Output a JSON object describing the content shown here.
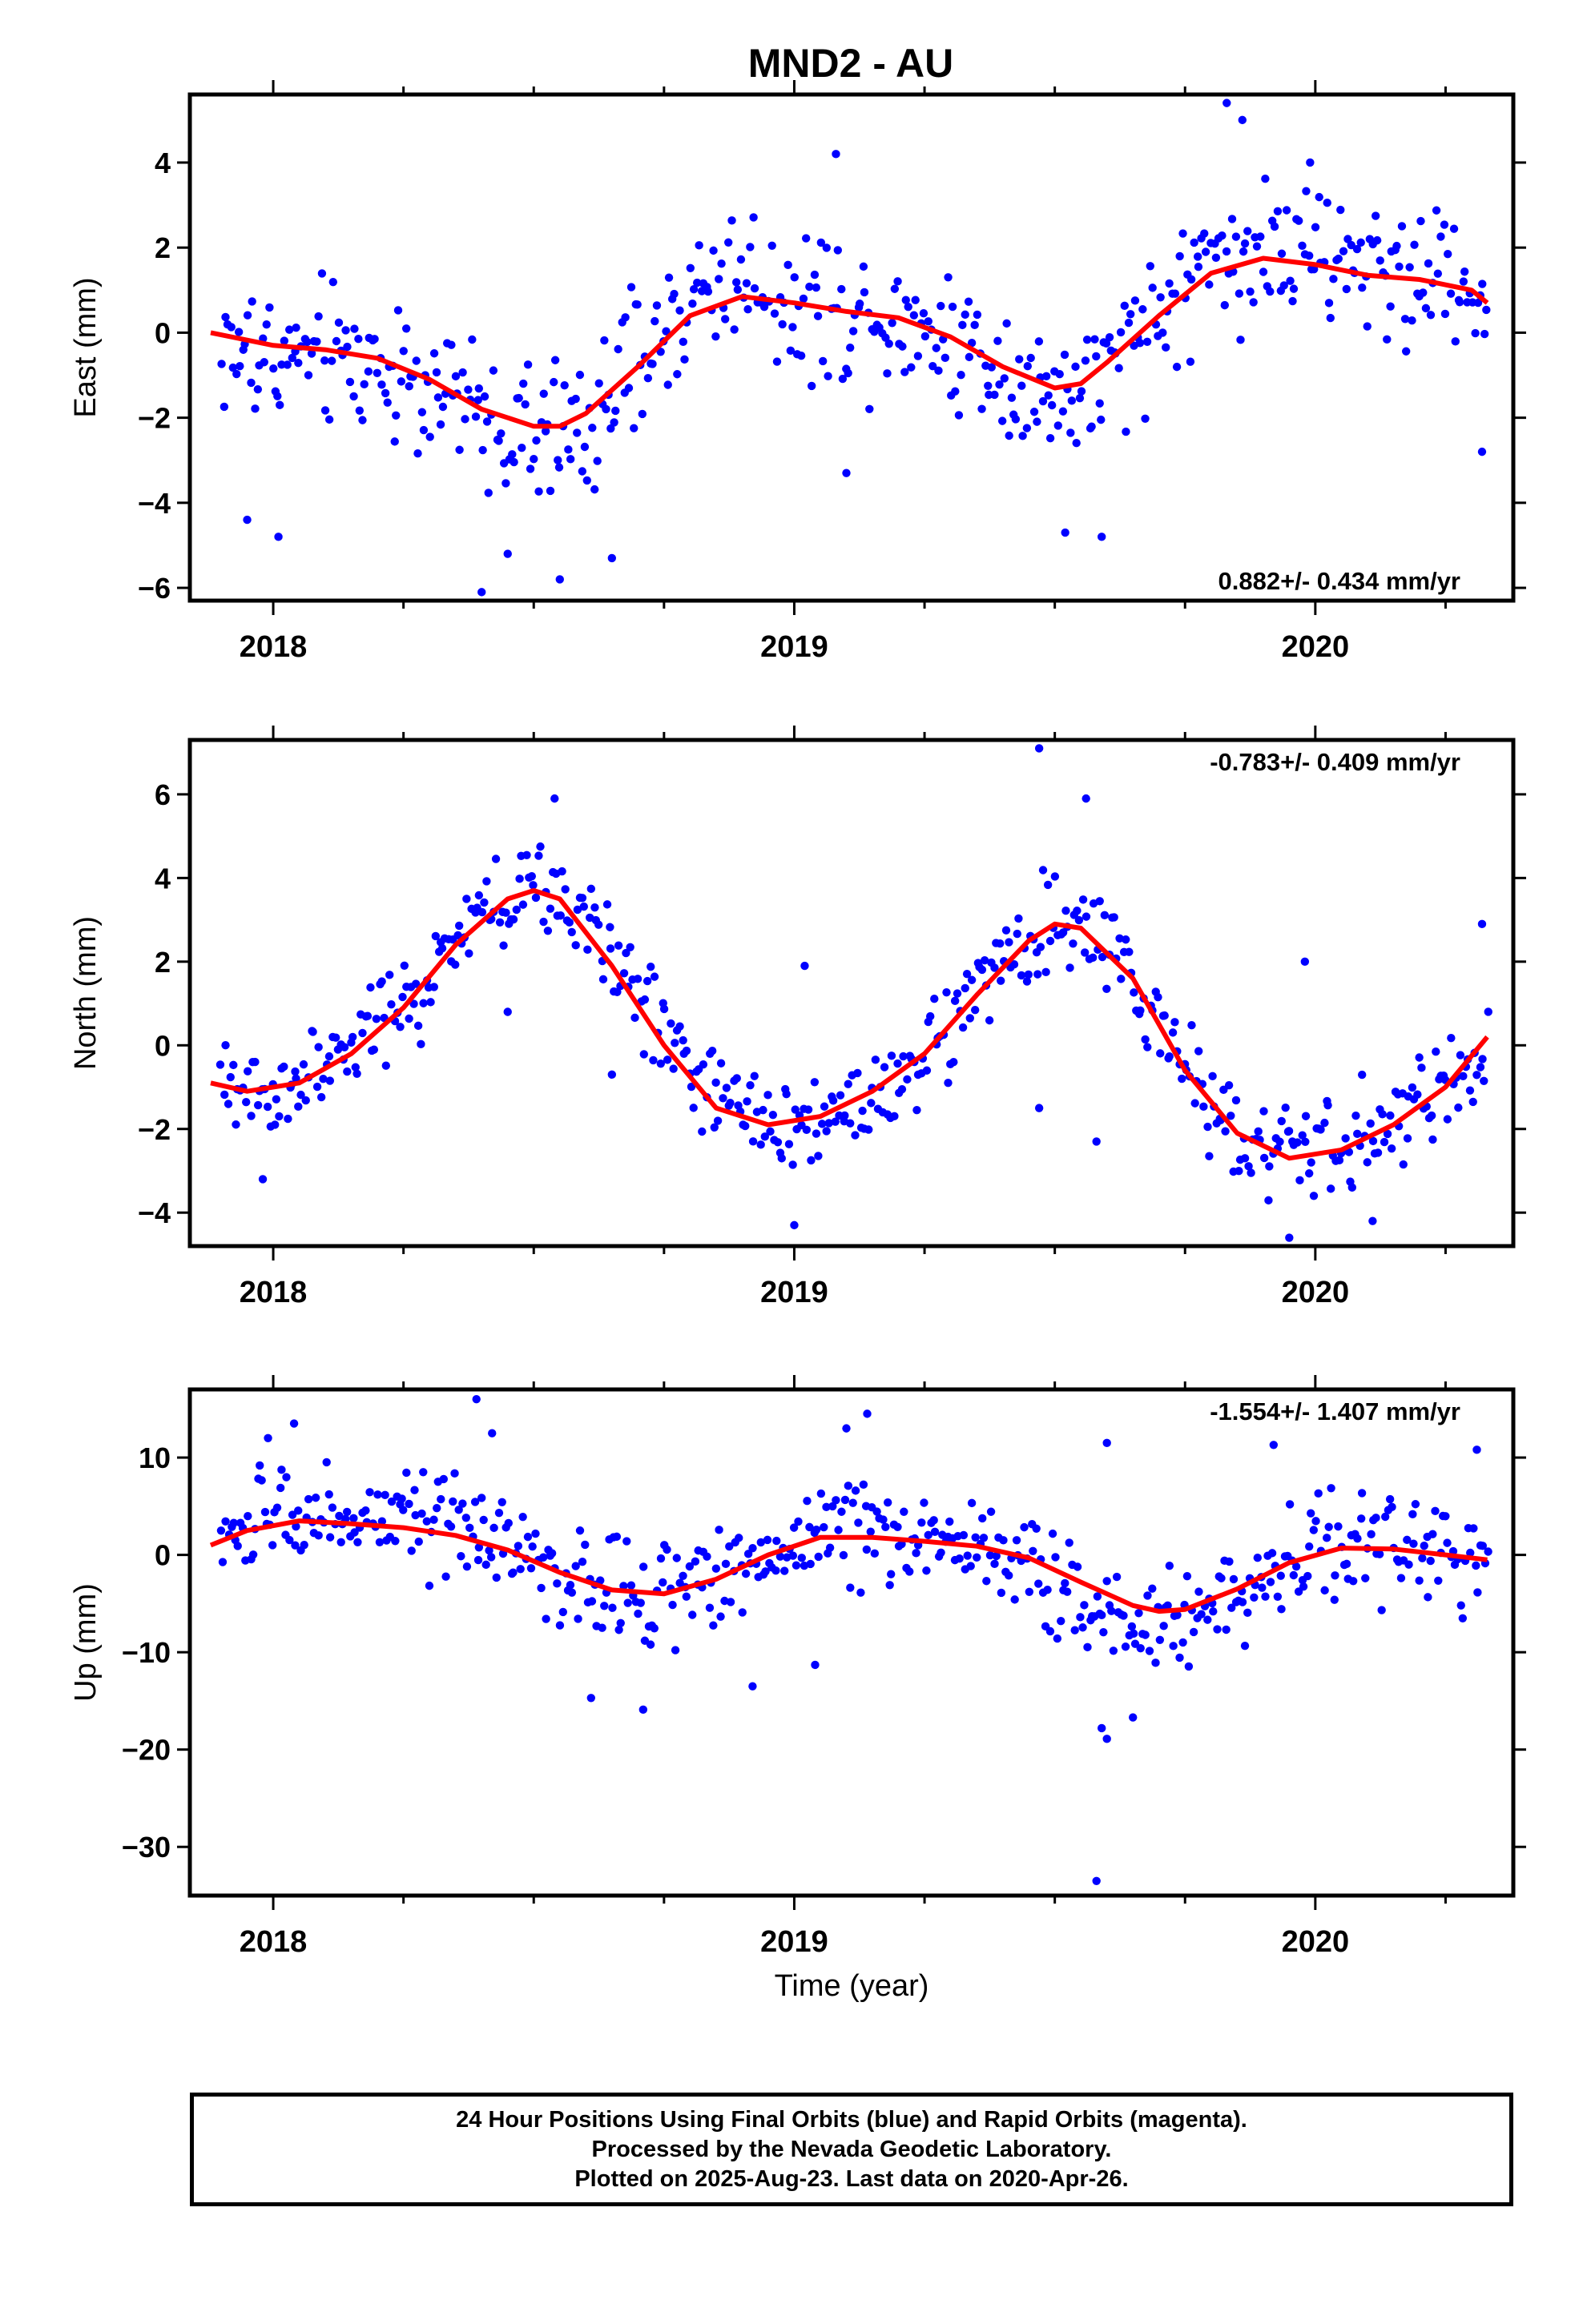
{
  "title": "MND2 - AU",
  "colors": {
    "points": "#0000ff",
    "fit": "#ff0000",
    "frame": "#000000"
  },
  "footer": {
    "line1": "24 Hour Positions Using Final Orbits (blue) and Rapid Orbits (magenta).",
    "line2": "Processed by the Nevada Geodetic Laboratory.",
    "line3": "Plotted on 2025-Aug-23. Last data on 2020-Apr-26."
  },
  "chart_data": [
    {
      "type": "scatter",
      "ylabel": "East (mm)",
      "xlabel": "",
      "xlim": [
        2017.84,
        2020.38
      ],
      "ylim": [
        -6.3,
        5.6
      ],
      "xticks": [
        2018,
        2019,
        2020
      ],
      "yticks": [
        -6,
        -4,
        -2,
        0,
        2,
        4
      ],
      "rate_label": "0.882+/- 0.434 mm/yr",
      "rate_position": "bottom-right",
      "fit": {
        "x": [
          2017.88,
          2018.0,
          2018.1,
          2018.2,
          2018.3,
          2018.4,
          2018.5,
          2018.55,
          2018.6,
          2018.7,
          2018.8,
          2018.9,
          2019.0,
          2019.1,
          2019.2,
          2019.3,
          2019.4,
          2019.5,
          2019.55,
          2019.6,
          2019.7,
          2019.8,
          2019.9,
          2020.0,
          2020.1,
          2020.2,
          2020.3,
          2020.33
        ],
        "y": [
          0.0,
          -0.3,
          -0.4,
          -0.6,
          -1.1,
          -1.8,
          -2.2,
          -2.2,
          -1.9,
          -0.8,
          0.4,
          0.85,
          0.7,
          0.5,
          0.35,
          -0.1,
          -0.8,
          -1.3,
          -1.2,
          -0.7,
          0.4,
          1.4,
          1.75,
          1.6,
          1.35,
          1.25,
          1.0,
          0.7
        ]
      },
      "points": {
        "base": [
          [
            2017.9,
            -0.4
          ],
          [
            2018.0,
            -0.6
          ],
          [
            2018.1,
            -0.5
          ],
          [
            2018.2,
            -0.8
          ],
          [
            2018.3,
            -1.2
          ],
          [
            2018.4,
            -2.0
          ],
          [
            2018.5,
            -2.5
          ],
          [
            2018.6,
            -2.2
          ],
          [
            2018.7,
            -0.8
          ],
          [
            2018.8,
            0.8
          ],
          [
            2018.9,
            1.5
          ],
          [
            2019.0,
            0.7
          ],
          [
            2019.1,
            0.5
          ],
          [
            2019.2,
            0.4
          ],
          [
            2019.3,
            -0.1
          ],
          [
            2019.4,
            -0.8
          ],
          [
            2019.5,
            -1.6
          ],
          [
            2019.6,
            -1.2
          ],
          [
            2019.7,
            0.4
          ],
          [
            2019.8,
            1.8
          ],
          [
            2019.9,
            2.0
          ],
          [
            2020.0,
            1.7
          ],
          [
            2020.1,
            1.6
          ],
          [
            2020.2,
            1.4
          ],
          [
            2020.3,
            1.2
          ],
          [
            2020.33,
            0.6
          ]
        ],
        "scatter": 1.3,
        "count": 520,
        "extras": [
          [
            2018.4,
            -6.1
          ],
          [
            2018.55,
            -5.8
          ],
          [
            2019.08,
            4.2
          ],
          [
            2019.83,
            5.4
          ],
          [
            2019.86,
            5.0
          ],
          [
            2019.52,
            -4.7
          ],
          [
            2019.59,
            -4.8
          ],
          [
            2017.95,
            -4.4
          ],
          [
            2018.01,
            -4.8
          ],
          [
            2018.45,
            -5.2
          ],
          [
            2018.65,
            -5.3
          ],
          [
            2020.32,
            -2.8
          ],
          [
            2019.1,
            -3.3
          ],
          [
            2019.99,
            4.0
          ]
        ]
      }
    },
    {
      "type": "scatter",
      "ylabel": "North (mm)",
      "xlabel": "",
      "xlim": [
        2017.84,
        2020.38
      ],
      "ylim": [
        -4.8,
        7.3
      ],
      "xticks": [
        2018,
        2019,
        2020
      ],
      "yticks": [
        -4,
        -2,
        0,
        2,
        4,
        6
      ],
      "rate_label": "-0.783+/- 0.409 mm/yr",
      "rate_position": "top-right",
      "fit": {
        "x": [
          2017.88,
          2017.95,
          2018.05,
          2018.15,
          2018.25,
          2018.35,
          2018.45,
          2018.5,
          2018.55,
          2018.65,
          2018.75,
          2018.85,
          2018.95,
          2019.05,
          2019.15,
          2019.25,
          2019.35,
          2019.45,
          2019.5,
          2019.55,
          2019.65,
          2019.75,
          2019.85,
          2019.95,
          2020.05,
          2020.15,
          2020.25,
          2020.33
        ],
        "y": [
          -0.9,
          -1.1,
          -0.9,
          -0.2,
          0.9,
          2.4,
          3.5,
          3.7,
          3.5,
          1.9,
          0.0,
          -1.5,
          -1.9,
          -1.7,
          -1.1,
          -0.2,
          1.2,
          2.5,
          2.9,
          2.8,
          1.6,
          -0.6,
          -2.1,
          -2.7,
          -2.5,
          -1.9,
          -1.0,
          0.2
        ]
      },
      "points": {
        "base": [
          [
            2017.9,
            -1.1
          ],
          [
            2018.0,
            -1.1
          ],
          [
            2018.1,
            -0.6
          ],
          [
            2018.2,
            0.4
          ],
          [
            2018.3,
            1.5
          ],
          [
            2018.4,
            3.0
          ],
          [
            2018.5,
            3.8
          ],
          [
            2018.6,
            3.0
          ],
          [
            2018.7,
            1.3
          ],
          [
            2018.8,
            -0.6
          ],
          [
            2018.9,
            -1.7
          ],
          [
            2019.0,
            -1.9
          ],
          [
            2019.1,
            -1.5
          ],
          [
            2019.2,
            -0.8
          ],
          [
            2019.3,
            0.4
          ],
          [
            2019.4,
            1.9
          ],
          [
            2019.5,
            2.9
          ],
          [
            2019.6,
            2.4
          ],
          [
            2019.7,
            0.5
          ],
          [
            2019.8,
            -1.4
          ],
          [
            2019.9,
            -2.4
          ],
          [
            2020.0,
            -2.6
          ],
          [
            2020.1,
            -2.2
          ],
          [
            2020.2,
            -1.5
          ],
          [
            2020.3,
            -0.5
          ],
          [
            2020.33,
            0.1
          ]
        ],
        "scatter": 0.9,
        "count": 520,
        "extras": [
          [
            2019.47,
            7.1
          ],
          [
            2018.54,
            5.9
          ],
          [
            2019.56,
            5.9
          ],
          [
            2017.98,
            -3.2
          ],
          [
            2019.0,
            -4.3
          ],
          [
            2019.95,
            -4.6
          ],
          [
            2020.11,
            -4.2
          ],
          [
            2019.47,
            -1.5
          ],
          [
            2019.58,
            -2.3
          ],
          [
            2018.45,
            0.8
          ],
          [
            2020.32,
            2.9
          ],
          [
            2019.02,
            1.9
          ],
          [
            2019.98,
            2.0
          ],
          [
            2018.65,
            -0.7
          ]
        ]
      }
    },
    {
      "type": "scatter",
      "ylabel": "Up (mm)",
      "xlabel": "Time (year)",
      "xlim": [
        2017.84,
        2020.38
      ],
      "ylim": [
        -35,
        17
      ],
      "xticks": [
        2018,
        2019,
        2020
      ],
      "yticks": [
        -30,
        -20,
        -10,
        0,
        10
      ],
      "rate_label": "-1.554+/- 1.407 mm/yr",
      "rate_position": "top-right",
      "fit": {
        "x": [
          2017.88,
          2017.95,
          2018.05,
          2018.15,
          2018.25,
          2018.35,
          2018.45,
          2018.55,
          2018.65,
          2018.75,
          2018.85,
          2018.95,
          2019.05,
          2019.15,
          2019.25,
          2019.35,
          2019.45,
          2019.55,
          2019.65,
          2019.7,
          2019.75,
          2019.85,
          2019.95,
          2020.05,
          2020.15,
          2020.25,
          2020.33
        ],
        "y": [
          1.0,
          2.5,
          3.5,
          3.2,
          2.8,
          2.0,
          0.5,
          -1.8,
          -3.6,
          -4.0,
          -2.5,
          0.0,
          1.8,
          1.8,
          1.4,
          0.9,
          -0.3,
          -2.8,
          -5.2,
          -5.8,
          -5.6,
          -3.5,
          -0.8,
          0.7,
          0.6,
          0.0,
          -0.5
        ]
      },
      "points": {
        "base": [
          [
            2017.9,
            1.0
          ],
          [
            2018.0,
            4.0
          ],
          [
            2018.1,
            4.5
          ],
          [
            2018.2,
            3.5
          ],
          [
            2018.3,
            3.0
          ],
          [
            2018.4,
            2.0
          ],
          [
            2018.5,
            -1.0
          ],
          [
            2018.6,
            -3.0
          ],
          [
            2018.7,
            -4.0
          ],
          [
            2018.8,
            -3.5
          ],
          [
            2018.9,
            -1.0
          ],
          [
            2019.0,
            1.5
          ],
          [
            2019.1,
            3.0
          ],
          [
            2019.2,
            2.0
          ],
          [
            2019.3,
            1.5
          ],
          [
            2019.4,
            0.0
          ],
          [
            2019.5,
            -3.0
          ],
          [
            2019.6,
            -6.0
          ],
          [
            2019.7,
            -7.0
          ],
          [
            2019.8,
            -5.0
          ],
          [
            2019.9,
            -2.0
          ],
          [
            2020.0,
            0.5
          ],
          [
            2020.1,
            1.5
          ],
          [
            2020.2,
            0.5
          ],
          [
            2020.3,
            -1.0
          ],
          [
            2020.33,
            -1.0
          ]
        ],
        "scatter": 4.0,
        "count": 520,
        "extras": [
          [
            2018.39,
            16.0
          ],
          [
            2018.42,
            12.5
          ],
          [
            2019.14,
            14.5
          ],
          [
            2017.99,
            12.0
          ],
          [
            2018.04,
            13.5
          ],
          [
            2019.1,
            13.0
          ],
          [
            2018.61,
            -14.7
          ],
          [
            2018.71,
            -15.9
          ],
          [
            2018.92,
            -13.5
          ],
          [
            2019.59,
            -17.8
          ],
          [
            2019.6,
            -18.9
          ],
          [
            2019.65,
            -16.7
          ],
          [
            2019.58,
            -33.5
          ],
          [
            2019.04,
            -11.3
          ],
          [
            2019.6,
            11.5
          ],
          [
            2019.92,
            11.3
          ],
          [
            2020.31,
            10.8
          ]
        ]
      }
    }
  ]
}
